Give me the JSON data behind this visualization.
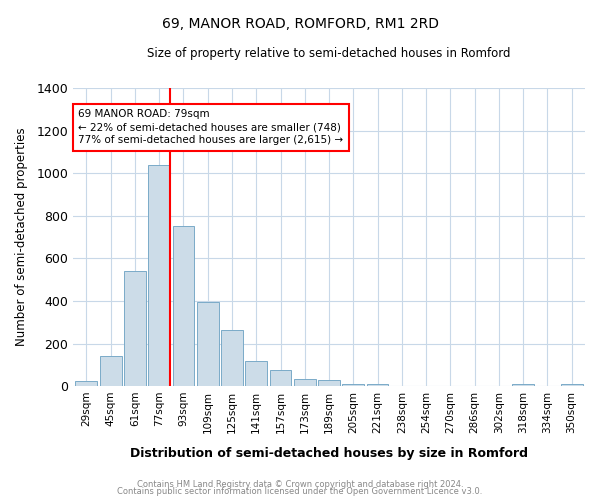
{
  "title": "69, MANOR ROAD, ROMFORD, RM1 2RD",
  "subtitle": "Size of property relative to semi-detached houses in Romford",
  "xlabel": "Distribution of semi-detached houses by size in Romford",
  "ylabel": "Number of semi-detached properties",
  "categories": [
    "29sqm",
    "45sqm",
    "61sqm",
    "77sqm",
    "93sqm",
    "109sqm",
    "125sqm",
    "141sqm",
    "157sqm",
    "173sqm",
    "189sqm",
    "205sqm",
    "221sqm",
    "238sqm",
    "254sqm",
    "270sqm",
    "286sqm",
    "302sqm",
    "318sqm",
    "334sqm",
    "350sqm"
  ],
  "values": [
    25,
    140,
    540,
    1040,
    750,
    395,
    265,
    120,
    75,
    35,
    30,
    12,
    10,
    0,
    0,
    0,
    0,
    0,
    10,
    0,
    10
  ],
  "bar_color": "#ccdce8",
  "bar_edgecolor": "#7aaac8",
  "red_line_index": 3,
  "annotation_text": "69 MANOR ROAD: 79sqm\n← 22% of semi-detached houses are smaller (748)\n77% of semi-detached houses are larger (2,615) →",
  "footer1": "Contains HM Land Registry data © Crown copyright and database right 2024.",
  "footer2": "Contains public sector information licensed under the Open Government Licence v3.0.",
  "ylim": [
    0,
    1400
  ],
  "background_color": "#ffffff",
  "grid_color": "#c8d8e8"
}
